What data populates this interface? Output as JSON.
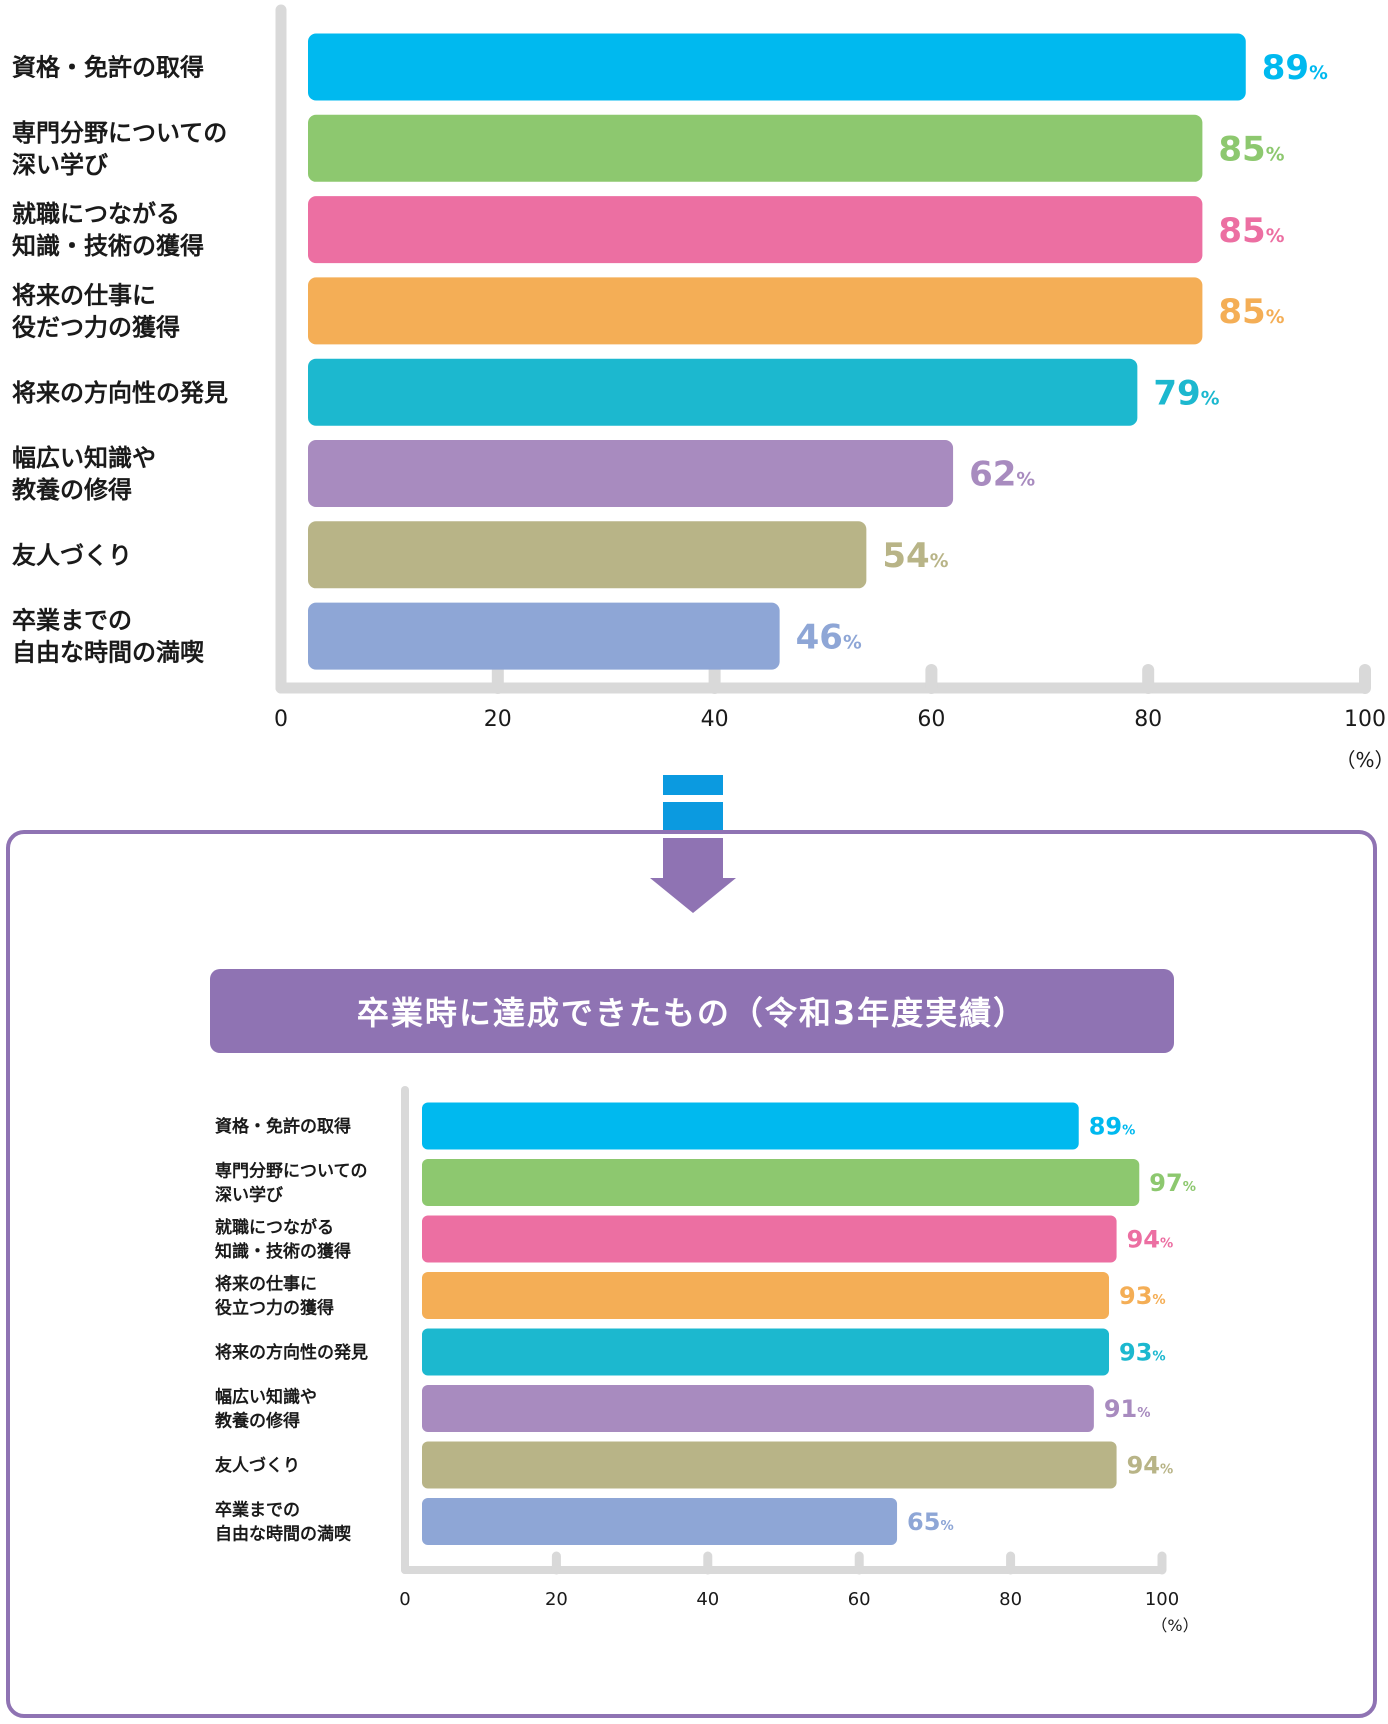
{
  "banner_title": "卒業時に達成できたもの（令和3年度実績）",
  "colors": {
    "frame": "#8f73b3",
    "arrow_top": "#0b9ae0",
    "arrow_bottom": "#8f73b3",
    "axis": "#d9d9d9"
  },
  "chart_data": [
    {
      "type": "bar",
      "orientation": "horizontal",
      "categories": [
        "資格・免許の取得",
        "専門分野についての\n深い学び",
        "就職につながる\n知識・技術の獲得",
        "将来の仕事に\n役だつ力の獲得",
        "将来の方向性の発見",
        "幅広い知識や\n教養の修得",
        "友人づくり",
        "卒業までの\n自由な時間の満喫"
      ],
      "values": [
        89,
        85,
        85,
        85,
        79,
        62,
        54,
        46
      ],
      "colors": [
        "#00b9ef",
        "#8dc86f",
        "#ec6fa2",
        "#f4ae56",
        "#1cb8cf",
        "#a88bbf",
        "#b8b487",
        "#8ea6d6"
      ],
      "value_suffix": "%",
      "xlim": [
        0,
        100
      ],
      "xticks": [
        0,
        20,
        40,
        60,
        80,
        100
      ],
      "xunit": "（%）",
      "grid": false
    },
    {
      "type": "bar",
      "orientation": "horizontal",
      "title": "卒業時に達成できたもの（令和3年度実績）",
      "categories": [
        "資格・免許の取得",
        "専門分野についての\n深い学び",
        "就職につながる\n知識・技術の獲得",
        "将来の仕事に\n役立つ力の獲得",
        "将来の方向性の発見",
        "幅広い知識や\n教養の修得",
        "友人づくり",
        "卒業までの\n自由な時間の満喫"
      ],
      "values": [
        89,
        97,
        94,
        93,
        93,
        91,
        94,
        65
      ],
      "colors": [
        "#00b9ef",
        "#8dc86f",
        "#ec6fa2",
        "#f4ae56",
        "#1cb8cf",
        "#a88bbf",
        "#b8b487",
        "#8ea6d6"
      ],
      "value_suffix": "%",
      "xlim": [
        0,
        100
      ],
      "xticks": [
        0,
        20,
        40,
        60,
        80,
        100
      ],
      "xunit": "（%）",
      "grid": false
    }
  ]
}
